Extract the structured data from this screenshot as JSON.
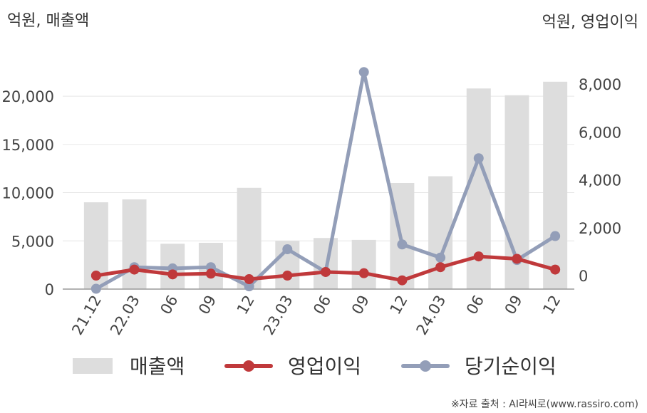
{
  "chart_data": {
    "type": "bar",
    "left_unit": "억원, 매출액",
    "right_unit": "억원, 영업이익",
    "categories": [
      "21.12",
      "22.03",
      "06",
      "09",
      "12",
      "23.03",
      "06",
      "09",
      "12",
      "24.03",
      "06",
      "09",
      "12"
    ],
    "series": [
      {
        "name": "매출액",
        "type": "bar",
        "axis": "left",
        "color": "#dddddd",
        "values": [
          9000,
          9300,
          4700,
          4800,
          10500,
          5000,
          5300,
          5100,
          11000,
          11700,
          20800,
          20100,
          21500
        ]
      },
      {
        "name": "영업이익",
        "type": "line",
        "axis": "right",
        "color": "#c0393b",
        "values": [
          0,
          250,
          50,
          80,
          -150,
          0,
          150,
          100,
          -200,
          350,
          800,
          700,
          250
        ]
      },
      {
        "name": "당기순이익",
        "type": "line",
        "axis": "right",
        "color": "#939eb8",
        "values": [
          -550,
          350,
          300,
          350,
          -450,
          1100,
          150,
          8500,
          1300,
          750,
          4900,
          650,
          1650
        ]
      }
    ],
    "left_axis": {
      "range": [
        0,
        22000
      ],
      "ticks": [
        0,
        5000,
        10000,
        15000,
        20000
      ],
      "tick_labels": [
        "0",
        "5,000",
        "10,000",
        "15,000",
        "20,000"
      ]
    },
    "right_axis": {
      "range": [
        -600,
        9000
      ],
      "ticks": [
        0,
        2000,
        4000,
        6000,
        8000
      ],
      "tick_labels": [
        "0",
        "2,000",
        "4,000",
        "6,000",
        "8,000"
      ]
    },
    "grid": true,
    "legend_position": "bottom"
  },
  "source": "※자료 출처 : AI라씨로(www.rassiro.com)"
}
